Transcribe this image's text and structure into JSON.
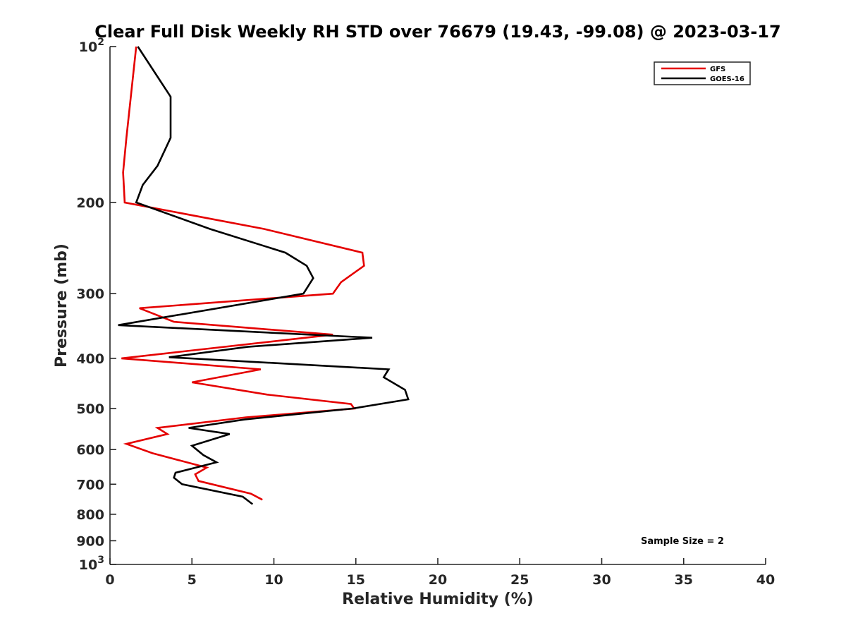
{
  "chart_data": {
    "type": "line",
    "title": "Clear Full Disk Weekly RH STD over 76679 (19.43, -99.08) @ 2023-03-17",
    "xlabel": "Relative Humidity (%)",
    "ylabel": "Pressure (mb)",
    "xlim": [
      0,
      40
    ],
    "ylim": [
      100,
      1000
    ],
    "y_scale": "log",
    "y_reversed": true,
    "x_ticks": [
      0,
      5,
      10,
      15,
      20,
      25,
      30,
      35,
      40
    ],
    "x_tick_labels": [
      "0",
      "5",
      "10",
      "15",
      "20",
      "25",
      "30",
      "35",
      "40"
    ],
    "y_ticks": [
      100,
      200,
      300,
      400,
      500,
      600,
      700,
      800,
      900,
      1000
    ],
    "y_tick_labels": [
      {
        "base": "10",
        "exp": "2"
      },
      {
        "base": "200",
        "exp": ""
      },
      {
        "base": "300",
        "exp": ""
      },
      {
        "base": "400",
        "exp": ""
      },
      {
        "base": "500",
        "exp": ""
      },
      {
        "base": "600",
        "exp": ""
      },
      {
        "base": "700",
        "exp": ""
      },
      {
        "base": "800",
        "exp": ""
      },
      {
        "base": "900",
        "exp": ""
      },
      {
        "base": "10",
        "exp": "3"
      }
    ],
    "grid": false,
    "legend_position": "top-right",
    "annotation": "Sample Size = 2",
    "series": [
      {
        "name": "GFS",
        "color": "#e50000",
        "points": [
          [
            1.6,
            100
          ],
          [
            1.0,
            150
          ],
          [
            0.8,
            175
          ],
          [
            0.9,
            200
          ],
          [
            9.4,
            225
          ],
          [
            15.4,
            250
          ],
          [
            15.5,
            265
          ],
          [
            14.1,
            285
          ],
          [
            13.6,
            300
          ],
          [
            1.8,
            320
          ],
          [
            3.9,
            340
          ],
          [
            13.6,
            360
          ],
          [
            0.7,
            400
          ],
          [
            9.2,
            420
          ],
          [
            5.0,
            445
          ],
          [
            9.6,
            470
          ],
          [
            14.7,
            490
          ],
          [
            14.9,
            500
          ],
          [
            8.3,
            520
          ],
          [
            2.9,
            545
          ],
          [
            3.5,
            560
          ],
          [
            1.0,
            585
          ],
          [
            2.6,
            610
          ],
          [
            5.9,
            650
          ],
          [
            5.2,
            670
          ],
          [
            5.4,
            690
          ],
          [
            8.6,
            730
          ],
          [
            9.3,
            750
          ]
        ]
      },
      {
        "name": "GOES-16",
        "color": "#000000",
        "points": [
          [
            1.7,
            100
          ],
          [
            3.7,
            125
          ],
          [
            3.7,
            150
          ],
          [
            2.9,
            170
          ],
          [
            2.0,
            185
          ],
          [
            1.6,
            200
          ],
          [
            6.1,
            225
          ],
          [
            10.7,
            250
          ],
          [
            12.0,
            265
          ],
          [
            12.4,
            280
          ],
          [
            11.8,
            300
          ],
          [
            0.5,
            345
          ],
          [
            16.0,
            365
          ],
          [
            8.4,
            380
          ],
          [
            3.6,
            398
          ],
          [
            17.0,
            420
          ],
          [
            16.7,
            435
          ],
          [
            18.0,
            460
          ],
          [
            18.2,
            480
          ],
          [
            14.8,
            500
          ],
          [
            8.2,
            525
          ],
          [
            4.8,
            545
          ],
          [
            7.3,
            560
          ],
          [
            5.0,
            590
          ],
          [
            5.7,
            615
          ],
          [
            6.5,
            635
          ],
          [
            4.0,
            665
          ],
          [
            3.9,
            680
          ],
          [
            4.4,
            700
          ],
          [
            8.1,
            740
          ],
          [
            8.7,
            765
          ]
        ]
      }
    ]
  }
}
